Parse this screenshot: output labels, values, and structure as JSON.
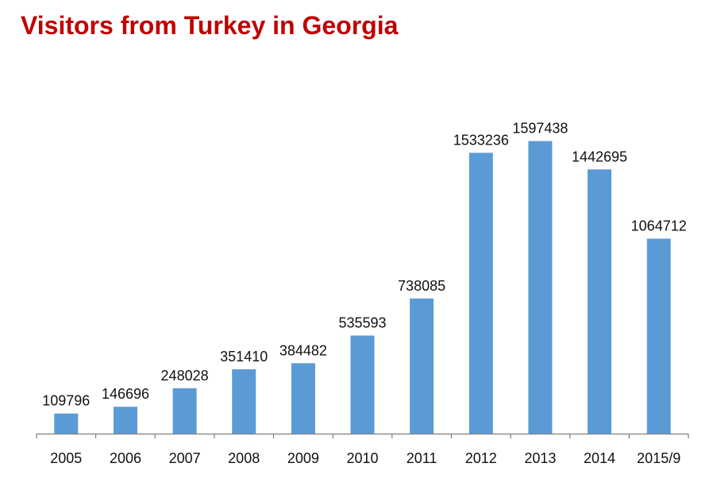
{
  "title": "Visitors from Turkey in Georgia",
  "chart_data": {
    "type": "bar",
    "title": "Visitors from Turkey in Georgia",
    "xlabel": "",
    "ylabel": "",
    "categories": [
      "2005",
      "2006",
      "2007",
      "2008",
      "2009",
      "2010",
      "2011",
      "2012",
      "2013",
      "2014",
      "2015/9"
    ],
    "values": [
      109796,
      146696,
      248028,
      351410,
      384482,
      535593,
      738085,
      1533236,
      1597438,
      1442695,
      1064712
    ],
    "value_labels": [
      "109796",
      "146696",
      "248028",
      "351410",
      "384482",
      "535593",
      "738085",
      "1533236",
      "1597438",
      "1442695",
      "1064712"
    ],
    "ylim": [
      0,
      1600000
    ],
    "grid": false,
    "legend": "none",
    "bar_color": "#5b9bd5",
    "axis_color": "#7f7f7f"
  }
}
